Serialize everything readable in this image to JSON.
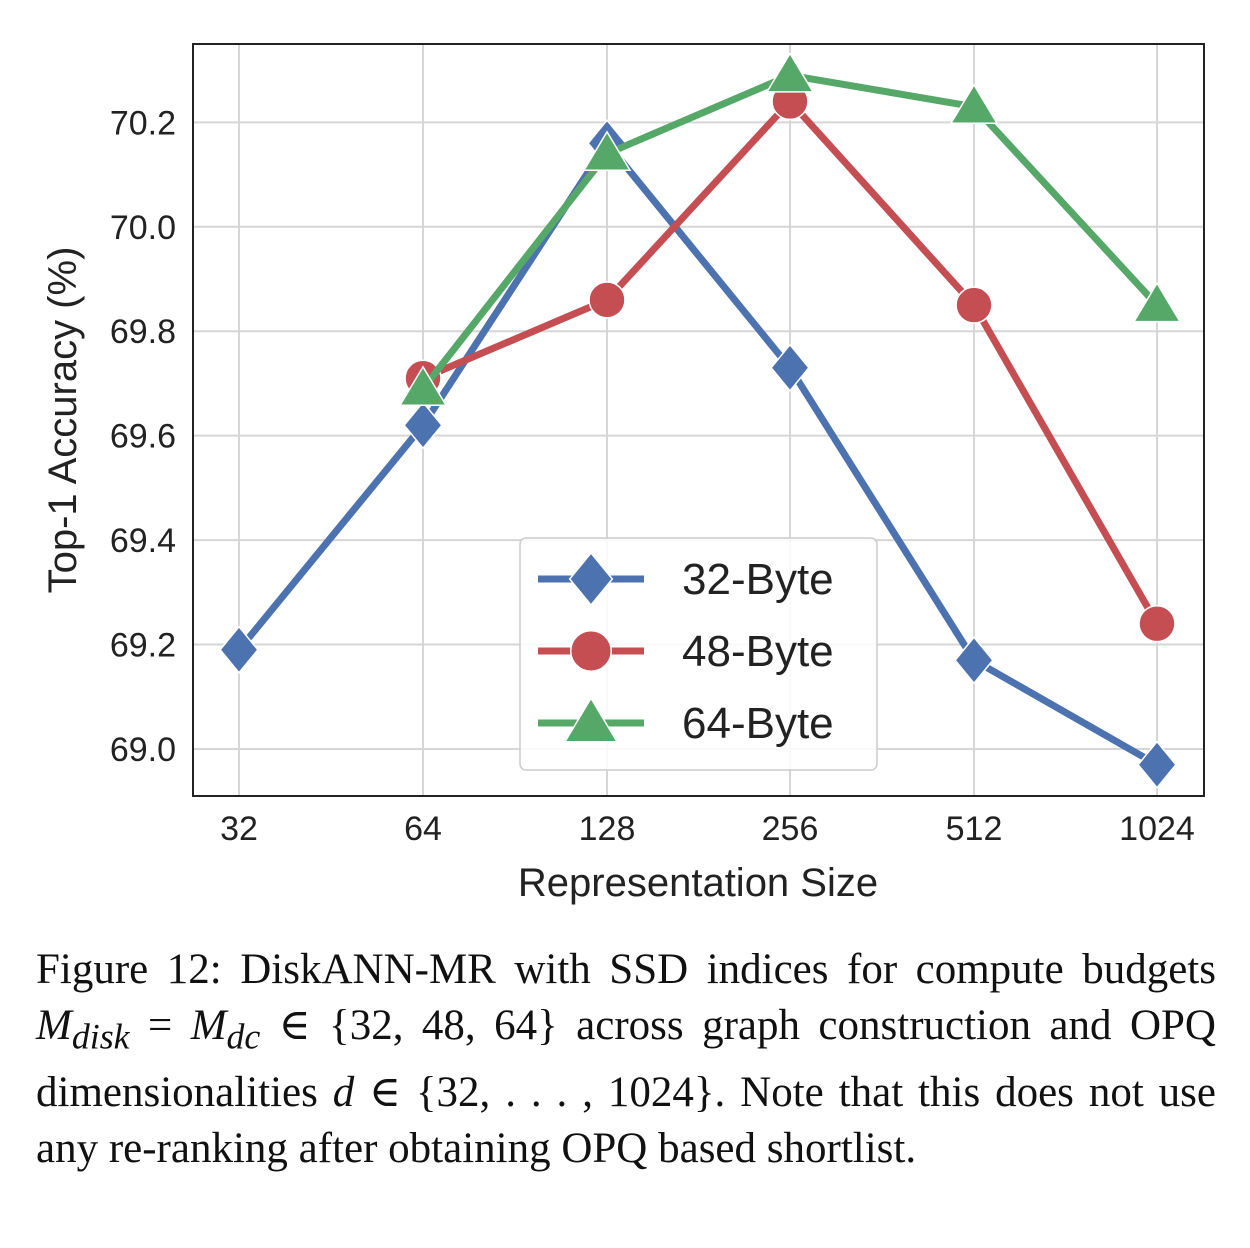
{
  "chart_data": {
    "type": "line",
    "x": [
      32,
      64,
      128,
      256,
      512,
      1024
    ],
    "x_tick_labels": [
      "32",
      "64",
      "128",
      "256",
      "512",
      "1024"
    ],
    "x_scale": "log2",
    "xlabel": "Representation Size",
    "ylabel": "Top-1 Accuracy (%)",
    "ylim": [
      68.91,
      70.35
    ],
    "y_ticks": [
      69.0,
      69.2,
      69.4,
      69.6,
      69.8,
      70.0,
      70.2
    ],
    "y_tick_labels": [
      "69.0",
      "69.2",
      "69.4",
      "69.6",
      "69.8",
      "70.0",
      "70.2"
    ],
    "grid": true,
    "legend_position": "lower-center",
    "series": [
      {
        "name": "32-Byte",
        "color": "#4c72b0",
        "marker": "diamond",
        "values": [
          69.19,
          69.62,
          70.16,
          69.73,
          69.17,
          68.97
        ]
      },
      {
        "name": "48-Byte",
        "color": "#c44e52",
        "marker": "circle",
        "values": [
          null,
          69.71,
          69.86,
          70.24,
          69.85,
          69.24
        ]
      },
      {
        "name": "64-Byte",
        "color": "#55a868",
        "marker": "triangle",
        "values": [
          null,
          69.69,
          70.14,
          70.29,
          70.23,
          69.85
        ]
      }
    ]
  },
  "caption": {
    "label": "Figure 12:",
    "part1": " DiskANN-MR with SSD indices for compute budgets ",
    "math1": "M",
    "sub1": "disk",
    "eq": " = ",
    "math2": "M",
    "sub2": "dc",
    "set1": " ∈ {32, 48, 64}",
    "part2": " across graph construction and OPQ dimensionalities ",
    "math3": "d",
    "set2": " ∈ {32, . . . , 1024}",
    "part3": ". Note that this does not use any re-ranking after obtaining OPQ based shortlist."
  }
}
